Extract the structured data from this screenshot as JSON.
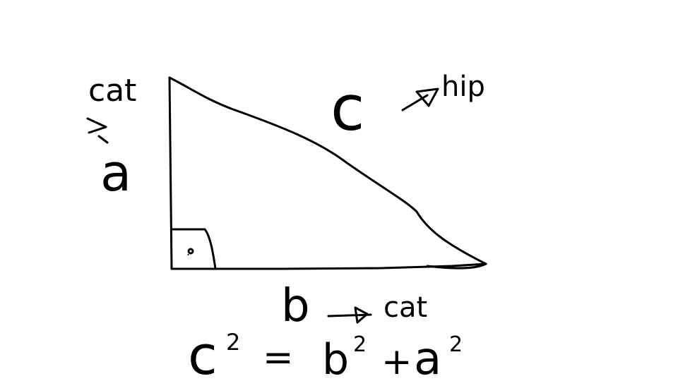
{
  "labels": {
    "side_a_top": "cat",
    "side_a": "a",
    "hypotenuse": "c",
    "hypotenuse_name": "hip",
    "side_b": "b",
    "side_b_name": "cat",
    "right_angle_dot": "."
  },
  "formula": {
    "c": "c",
    "c_exp": "2",
    "equals": "=",
    "b": "b",
    "b_exp": "2",
    "plus": "+",
    "a": "a",
    "a_exp": "2"
  },
  "colors": {
    "ink": "#000000",
    "background": "#ffffff"
  }
}
